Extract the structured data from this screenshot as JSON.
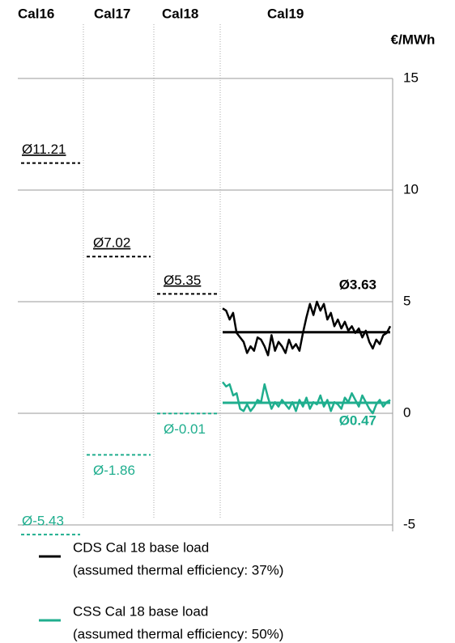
{
  "chart_data": {
    "type": "average-steps",
    "y_label": "€/MWh",
    "categories": [
      "Cal16",
      "Cal17",
      "Cal18",
      "Cal19"
    ],
    "ylim": [
      -5,
      15
    ],
    "yticks": [
      15,
      10,
      5,
      0,
      -5
    ],
    "grid": true,
    "series": [
      {
        "name": "CDS Cal 18 base load",
        "detail": "(assumed thermal efficiency: 37%)",
        "color": "#000000",
        "averages": [
          11.21,
          7.02,
          5.35,
          3.63
        ],
        "average_labels": [
          "Ø11.21",
          "Ø7.02",
          "Ø5.35",
          "Ø3.63"
        ],
        "daily": [
          4.7,
          4.6,
          4.2,
          4.5,
          3.6,
          3.4,
          3.2,
          2.7,
          3.0,
          2.8,
          3.4,
          3.3,
          3.0,
          2.6,
          3.5,
          2.8,
          3.2,
          3.0,
          2.7,
          3.3,
          2.9,
          3.1,
          2.8,
          3.6,
          4.3,
          4.9,
          4.4,
          5.0,
          4.6,
          4.9,
          4.2,
          4.5,
          3.9,
          4.2,
          3.8,
          4.1,
          3.7,
          3.9,
          3.6,
          3.8,
          3.4,
          3.7,
          3.2,
          2.9,
          3.3,
          3.1,
          3.5,
          3.6,
          3.9
        ]
      },
      {
        "name": "CSS Cal 18 base load",
        "detail": "(assumed thermal efficiency: 50%)",
        "color": "#1fae8e",
        "averages": [
          -5.43,
          -1.86,
          -0.01,
          0.47
        ],
        "average_labels": [
          "Ø-5.43",
          "Ø-1.86",
          "Ø-0.01",
          "Ø0.47"
        ],
        "daily": [
          1.4,
          1.2,
          1.3,
          0.8,
          0.9,
          0.2,
          0.1,
          0.4,
          0.1,
          0.3,
          0.6,
          0.5,
          1.3,
          0.7,
          0.2,
          0.5,
          0.3,
          0.6,
          0.4,
          0.2,
          0.5,
          0.1,
          0.6,
          0.3,
          0.7,
          0.2,
          0.5,
          0.4,
          0.8,
          0.3,
          0.6,
          0.1,
          0.5,
          0.4,
          0.2,
          0.7,
          0.5,
          0.9,
          0.6,
          0.3,
          0.8,
          0.5,
          0.2,
          0.0,
          0.4,
          0.6,
          0.3,
          0.5,
          0.6
        ]
      }
    ]
  }
}
